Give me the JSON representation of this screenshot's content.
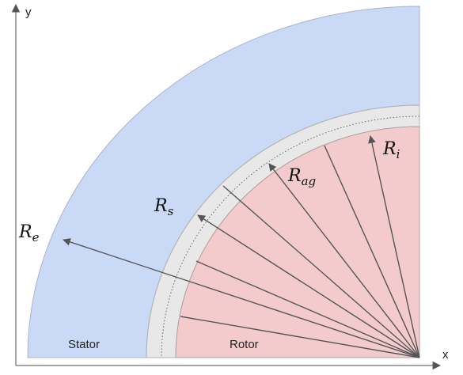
{
  "axes": {
    "x": "x",
    "y": "y"
  },
  "regions": {
    "stator": "Stator",
    "rotor": "Rotor"
  },
  "radii": [
    {
      "symbol": "R",
      "subscript": "e"
    },
    {
      "symbol": "R",
      "subscript": "s"
    },
    {
      "symbol": "R",
      "subscript": "ag"
    },
    {
      "symbol": "R",
      "subscript": "i"
    }
  ]
}
